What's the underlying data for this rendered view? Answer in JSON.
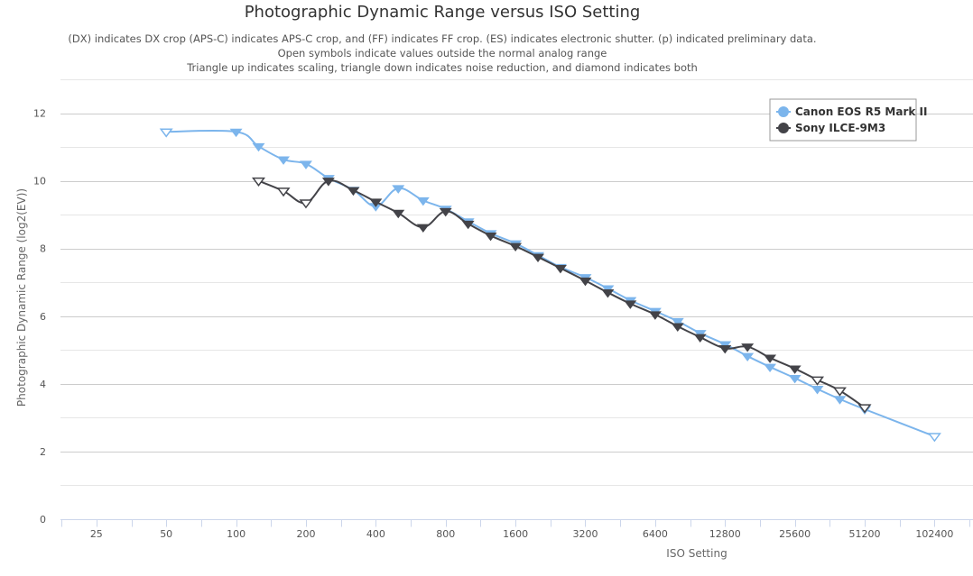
{
  "chart_data": {
    "type": "line",
    "title": "Photographic Dynamic Range versus ISO Setting",
    "subtitle": [
      "(DX) indicates DX crop (APS-C) indicates APS-C crop, and (FF) indicates FF crop. (ES) indicates electronic shutter. (p) indicated preliminary data.",
      "Open symbols indicate values outside the normal analog range",
      "Triangle up indicates scaling, triangle down indicates noise reduction, and diamond indicates both"
    ],
    "xlabel": "ISO Setting",
    "ylabel": "Photographic Dynamic Range (log2(EV))",
    "x_scale": "log2",
    "x_ticks": [
      "25",
      "50",
      "100",
      "200",
      "400",
      "800",
      "1600",
      "3200",
      "6400",
      "12800",
      "25600",
      "51200",
      "102400"
    ],
    "y_ticks": [
      "0",
      "2",
      "4",
      "6",
      "8",
      "10",
      "12"
    ],
    "xlim": [
      17.5,
      150000
    ],
    "ylim": [
      0,
      13
    ],
    "grid": true,
    "legend_position": "top-right",
    "series": [
      {
        "name": "Canon EOS R5 Mark II",
        "color": "#7cb5ec",
        "points": [
          {
            "x": 50,
            "y": 11.45,
            "open": true
          },
          {
            "x": 100,
            "y": 11.45,
            "open": false
          },
          {
            "x": 125,
            "y": 11.02,
            "open": false
          },
          {
            "x": 160,
            "y": 10.63,
            "open": false
          },
          {
            "x": 200,
            "y": 10.5,
            "open": false
          },
          {
            "x": 250,
            "y": 10.08,
            "open": false
          },
          {
            "x": 320,
            "y": 9.73,
            "open": false
          },
          {
            "x": 400,
            "y": 9.25,
            "open": false
          },
          {
            "x": 500,
            "y": 9.78,
            "open": false
          },
          {
            "x": 640,
            "y": 9.42,
            "open": false
          },
          {
            "x": 800,
            "y": 9.17,
            "open": false
          },
          {
            "x": 1000,
            "y": 8.8,
            "open": false
          },
          {
            "x": 1250,
            "y": 8.45,
            "open": false
          },
          {
            "x": 1600,
            "y": 8.15,
            "open": false
          },
          {
            "x": 2000,
            "y": 7.8,
            "open": false
          },
          {
            "x": 2500,
            "y": 7.45,
            "open": false
          },
          {
            "x": 3200,
            "y": 7.15,
            "open": false
          },
          {
            "x": 4000,
            "y": 6.82,
            "open": false
          },
          {
            "x": 5000,
            "y": 6.47,
            "open": false
          },
          {
            "x": 6400,
            "y": 6.15,
            "open": false
          },
          {
            "x": 8000,
            "y": 5.85,
            "open": false
          },
          {
            "x": 10000,
            "y": 5.5,
            "open": false
          },
          {
            "x": 12800,
            "y": 5.17,
            "open": false
          },
          {
            "x": 16000,
            "y": 4.82,
            "open": false
          },
          {
            "x": 20000,
            "y": 4.5,
            "open": false
          },
          {
            "x": 25600,
            "y": 4.17,
            "open": false
          },
          {
            "x": 32000,
            "y": 3.85,
            "open": false
          },
          {
            "x": 40000,
            "y": 3.55,
            "open": false
          },
          {
            "x": 51200,
            "y": 3.25,
            "open": false
          },
          {
            "x": 102400,
            "y": 2.45,
            "open": true
          }
        ]
      },
      {
        "name": "Sony ILCE-9M3",
        "color": "#434348",
        "points": [
          {
            "x": 125,
            "y": 10.0,
            "open": true
          },
          {
            "x": 160,
            "y": 9.7,
            "open": true
          },
          {
            "x": 200,
            "y": 9.35,
            "open": true
          },
          {
            "x": 250,
            "y": 10.0,
            "open": false
          },
          {
            "x": 320,
            "y": 9.72,
            "open": false
          },
          {
            "x": 400,
            "y": 9.38,
            "open": false
          },
          {
            "x": 500,
            "y": 9.05,
            "open": false
          },
          {
            "x": 640,
            "y": 8.63,
            "open": false
          },
          {
            "x": 800,
            "y": 9.1,
            "open": false
          },
          {
            "x": 1000,
            "y": 8.73,
            "open": false
          },
          {
            "x": 1250,
            "y": 8.38,
            "open": false
          },
          {
            "x": 1600,
            "y": 8.07,
            "open": false
          },
          {
            "x": 2000,
            "y": 7.75,
            "open": false
          },
          {
            "x": 2500,
            "y": 7.42,
            "open": false
          },
          {
            "x": 3200,
            "y": 7.05,
            "open": false
          },
          {
            "x": 4000,
            "y": 6.7,
            "open": false
          },
          {
            "x": 5000,
            "y": 6.37,
            "open": false
          },
          {
            "x": 6400,
            "y": 6.05,
            "open": false
          },
          {
            "x": 8000,
            "y": 5.7,
            "open": false
          },
          {
            "x": 10000,
            "y": 5.38,
            "open": false
          },
          {
            "x": 12800,
            "y": 5.05,
            "open": false
          },
          {
            "x": 16000,
            "y": 5.1,
            "open": false
          },
          {
            "x": 20000,
            "y": 4.77,
            "open": false
          },
          {
            "x": 25600,
            "y": 4.45,
            "open": false
          },
          {
            "x": 32000,
            "y": 4.12,
            "open": true
          },
          {
            "x": 40000,
            "y": 3.8,
            "open": true
          },
          {
            "x": 51200,
            "y": 3.3,
            "open": true
          }
        ]
      }
    ]
  }
}
